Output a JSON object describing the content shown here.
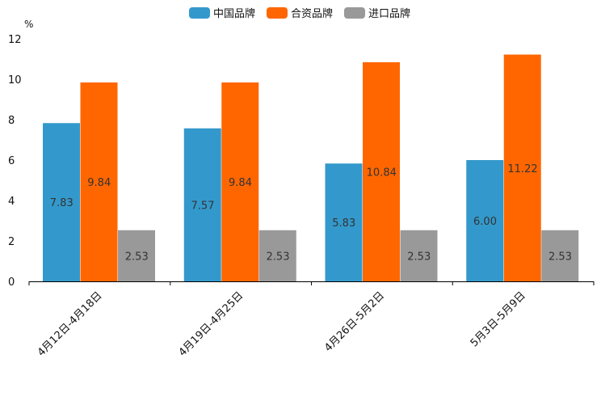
{
  "chart_data": {
    "type": "bar",
    "title": "",
    "xlabel": "",
    "ylabel": "%",
    "ylim": [
      0,
      12
    ],
    "yticks": [
      0,
      2,
      4,
      6,
      8,
      10,
      12
    ],
    "grid": false,
    "legend_position": "top-center",
    "categories": [
      "4月12日-4月18日",
      "4月19日-4月25日",
      "4月26日-5月2日",
      "5月3日-5月9日"
    ],
    "series": [
      {
        "name": "中国品牌",
        "color": "#3399cc",
        "values": [
          7.83,
          7.57,
          5.83,
          6.0
        ],
        "labels": [
          "7.83",
          "7.57",
          "5.83",
          "6.00"
        ]
      },
      {
        "name": "合资品牌",
        "color": "#ff6600",
        "values": [
          9.84,
          9.84,
          10.84,
          11.22
        ],
        "labels": [
          "9.84",
          "9.84",
          "10.84",
          "11.22"
        ]
      },
      {
        "name": "进口品牌",
        "color": "#999999",
        "values": [
          2.53,
          2.53,
          2.53,
          2.53
        ],
        "labels": [
          "2.53",
          "2.53",
          "2.53",
          "2.53"
        ]
      }
    ]
  }
}
